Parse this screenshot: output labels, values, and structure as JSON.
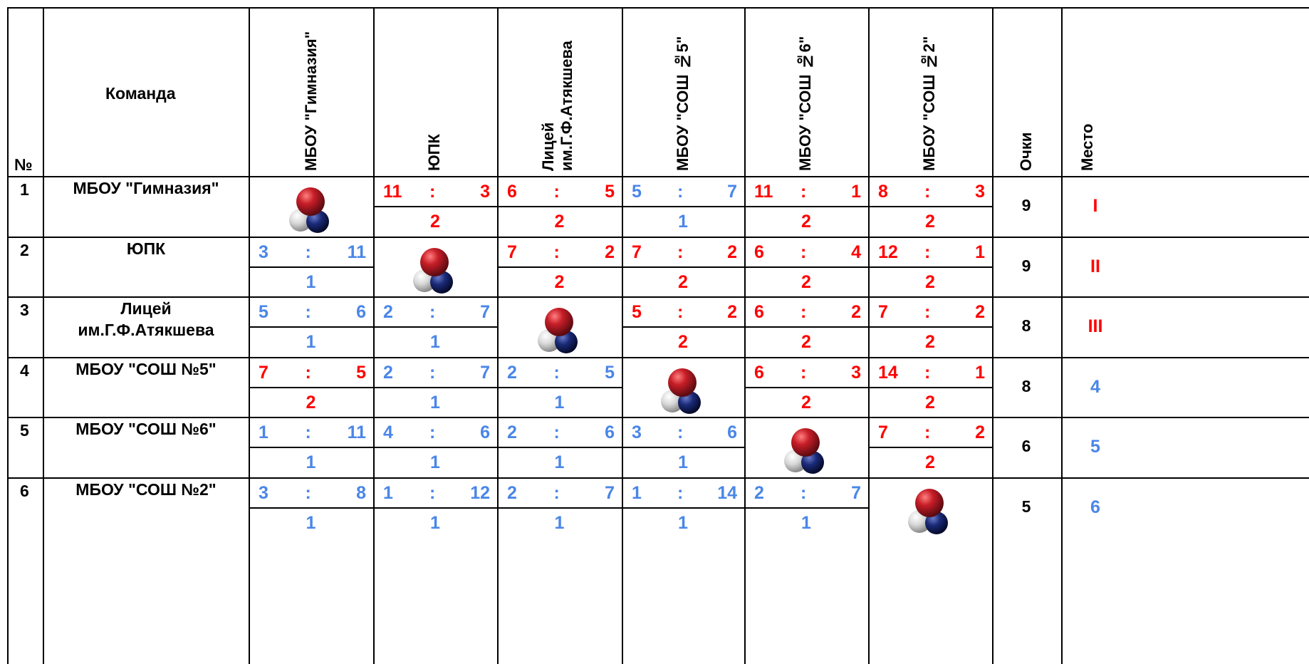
{
  "headers": {
    "num": "№",
    "team": "Команда",
    "opponents": [
      "МБОУ \"Гимназия\"",
      "ЮПК",
      "Лицей\nим.Г.Ф.Атякшева",
      "МБОУ \"СОШ №5\"",
      "МБОУ \"СОШ №6\"",
      "МБОУ \"СОШ №2\""
    ],
    "points": "Очки",
    "place": "Место"
  },
  "colors": {
    "win": "#ff0000",
    "loss": "#4a86e8",
    "line": "#000000"
  },
  "separator": ":",
  "self_icon": "petanque-balls-icon",
  "rows": [
    {
      "num": "1",
      "team": "МБОУ \"Гимназия\"",
      "self": 0,
      "total": "9",
      "place": "I",
      "place_color": "#ff0000",
      "results": [
        null,
        {
          "a": "11",
          "b": "3",
          "pts": "2",
          "win": true
        },
        {
          "a": "6",
          "b": "5",
          "pts": "2",
          "win": true
        },
        {
          "a": "5",
          "b": "7",
          "pts": "1",
          "win": false
        },
        {
          "a": "11",
          "b": "1",
          "pts": "2",
          "win": true
        },
        {
          "a": "8",
          "b": "3",
          "pts": "2",
          "win": true
        }
      ]
    },
    {
      "num": "2",
      "team": "ЮПК",
      "self": 1,
      "total": "9",
      "place": "II",
      "place_color": "#ff0000",
      "results": [
        {
          "a": "3",
          "b": "11",
          "pts": "1",
          "win": false
        },
        null,
        {
          "a": "7",
          "b": "2",
          "pts": "2",
          "win": true
        },
        {
          "a": "7",
          "b": "2",
          "pts": "2",
          "win": true
        },
        {
          "a": "6",
          "b": "4",
          "pts": "2",
          "win": true
        },
        {
          "a": "12",
          "b": "1",
          "pts": "2",
          "win": true
        }
      ]
    },
    {
      "num": "3",
      "team": "Лицей\nим.Г.Ф.Атякшева",
      "self": 2,
      "total": "8",
      "place": "III",
      "place_color": "#ff0000",
      "results": [
        {
          "a": "5",
          "b": "6",
          "pts": "1",
          "win": false
        },
        {
          "a": "2",
          "b": "7",
          "pts": "1",
          "win": false
        },
        null,
        {
          "a": "5",
          "b": "2",
          "pts": "2",
          "win": true
        },
        {
          "a": "6",
          "b": "2",
          "pts": "2",
          "win": true
        },
        {
          "a": "7",
          "b": "2",
          "pts": "2",
          "win": true
        }
      ]
    },
    {
      "num": "4",
      "team": "МБОУ \"СОШ №5\"",
      "self": 3,
      "total": "8",
      "place": "4",
      "place_color": "#4a86e8",
      "results": [
        {
          "a": "7",
          "b": "5",
          "pts": "2",
          "win": true
        },
        {
          "a": "2",
          "b": "7",
          "pts": "1",
          "win": false
        },
        {
          "a": "2",
          "b": "5",
          "pts": "1",
          "win": false
        },
        null,
        {
          "a": "6",
          "b": "3",
          "pts": "2",
          "win": true
        },
        {
          "a": "14",
          "b": "1",
          "pts": "2",
          "win": true
        }
      ]
    },
    {
      "num": "5",
      "team": "МБОУ \"СОШ №6\"",
      "self": 4,
      "total": "6",
      "place": "5",
      "place_color": "#4a86e8",
      "results": [
        {
          "a": "1",
          "b": "11",
          "pts": "1",
          "win": false
        },
        {
          "a": "4",
          "b": "6",
          "pts": "1",
          "win": false
        },
        {
          "a": "2",
          "b": "6",
          "pts": "1",
          "win": false
        },
        {
          "a": "3",
          "b": "6",
          "pts": "1",
          "win": false
        },
        null,
        {
          "a": "7",
          "b": "2",
          "pts": "2",
          "win": true
        }
      ]
    },
    {
      "num": "6",
      "team": "МБОУ \"СОШ №2\"",
      "self": 5,
      "total": "5",
      "place": "6",
      "place_color": "#4a86e8",
      "results": [
        {
          "a": "3",
          "b": "8",
          "pts": "1",
          "win": false
        },
        {
          "a": "1",
          "b": "12",
          "pts": "1",
          "win": false
        },
        {
          "a": "2",
          "b": "7",
          "pts": "1",
          "win": false
        },
        {
          "a": "1",
          "b": "14",
          "pts": "1",
          "win": false
        },
        {
          "a": "2",
          "b": "7",
          "pts": "1",
          "win": false
        },
        null
      ]
    }
  ]
}
